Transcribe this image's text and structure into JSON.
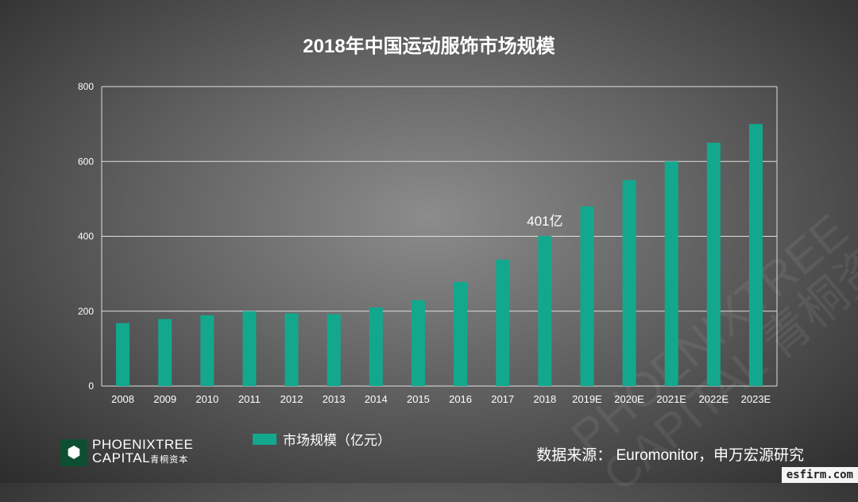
{
  "chart_data": {
    "type": "bar",
    "title": "2018年中国运动服饰市场规模",
    "categories": [
      "2008",
      "2009",
      "2010",
      "2011",
      "2012",
      "2013",
      "2014",
      "2015",
      "2016",
      "2017",
      "2018",
      "2019E",
      "2020E",
      "2021E",
      "2022E",
      "2023E"
    ],
    "series": [
      {
        "name": "市场规模（亿元）",
        "values": [
          168,
          179,
          189,
          200,
          194,
          192,
          210,
          229,
          278,
          338,
          401,
          480,
          550,
          600,
          650,
          700
        ]
      }
    ],
    "yticks": [
      0,
      200,
      400,
      600,
      800
    ],
    "ylim": [
      0,
      800
    ],
    "grid": true,
    "legend": "bottom",
    "annotations": [
      {
        "category": "2018",
        "text": "401亿"
      }
    ],
    "color": "#13a88e"
  },
  "logo": {
    "line1": "PHOENIXTREE",
    "line2": "CAPITAL",
    "cn": "青桐资本"
  },
  "source": "数据来源：  Euromonitor，申万宏源研究",
  "watermark": {
    "line1": "PHOENIXTREE",
    "line2": "CAPITAL 青桐资本"
  },
  "site": "esfirm.com"
}
